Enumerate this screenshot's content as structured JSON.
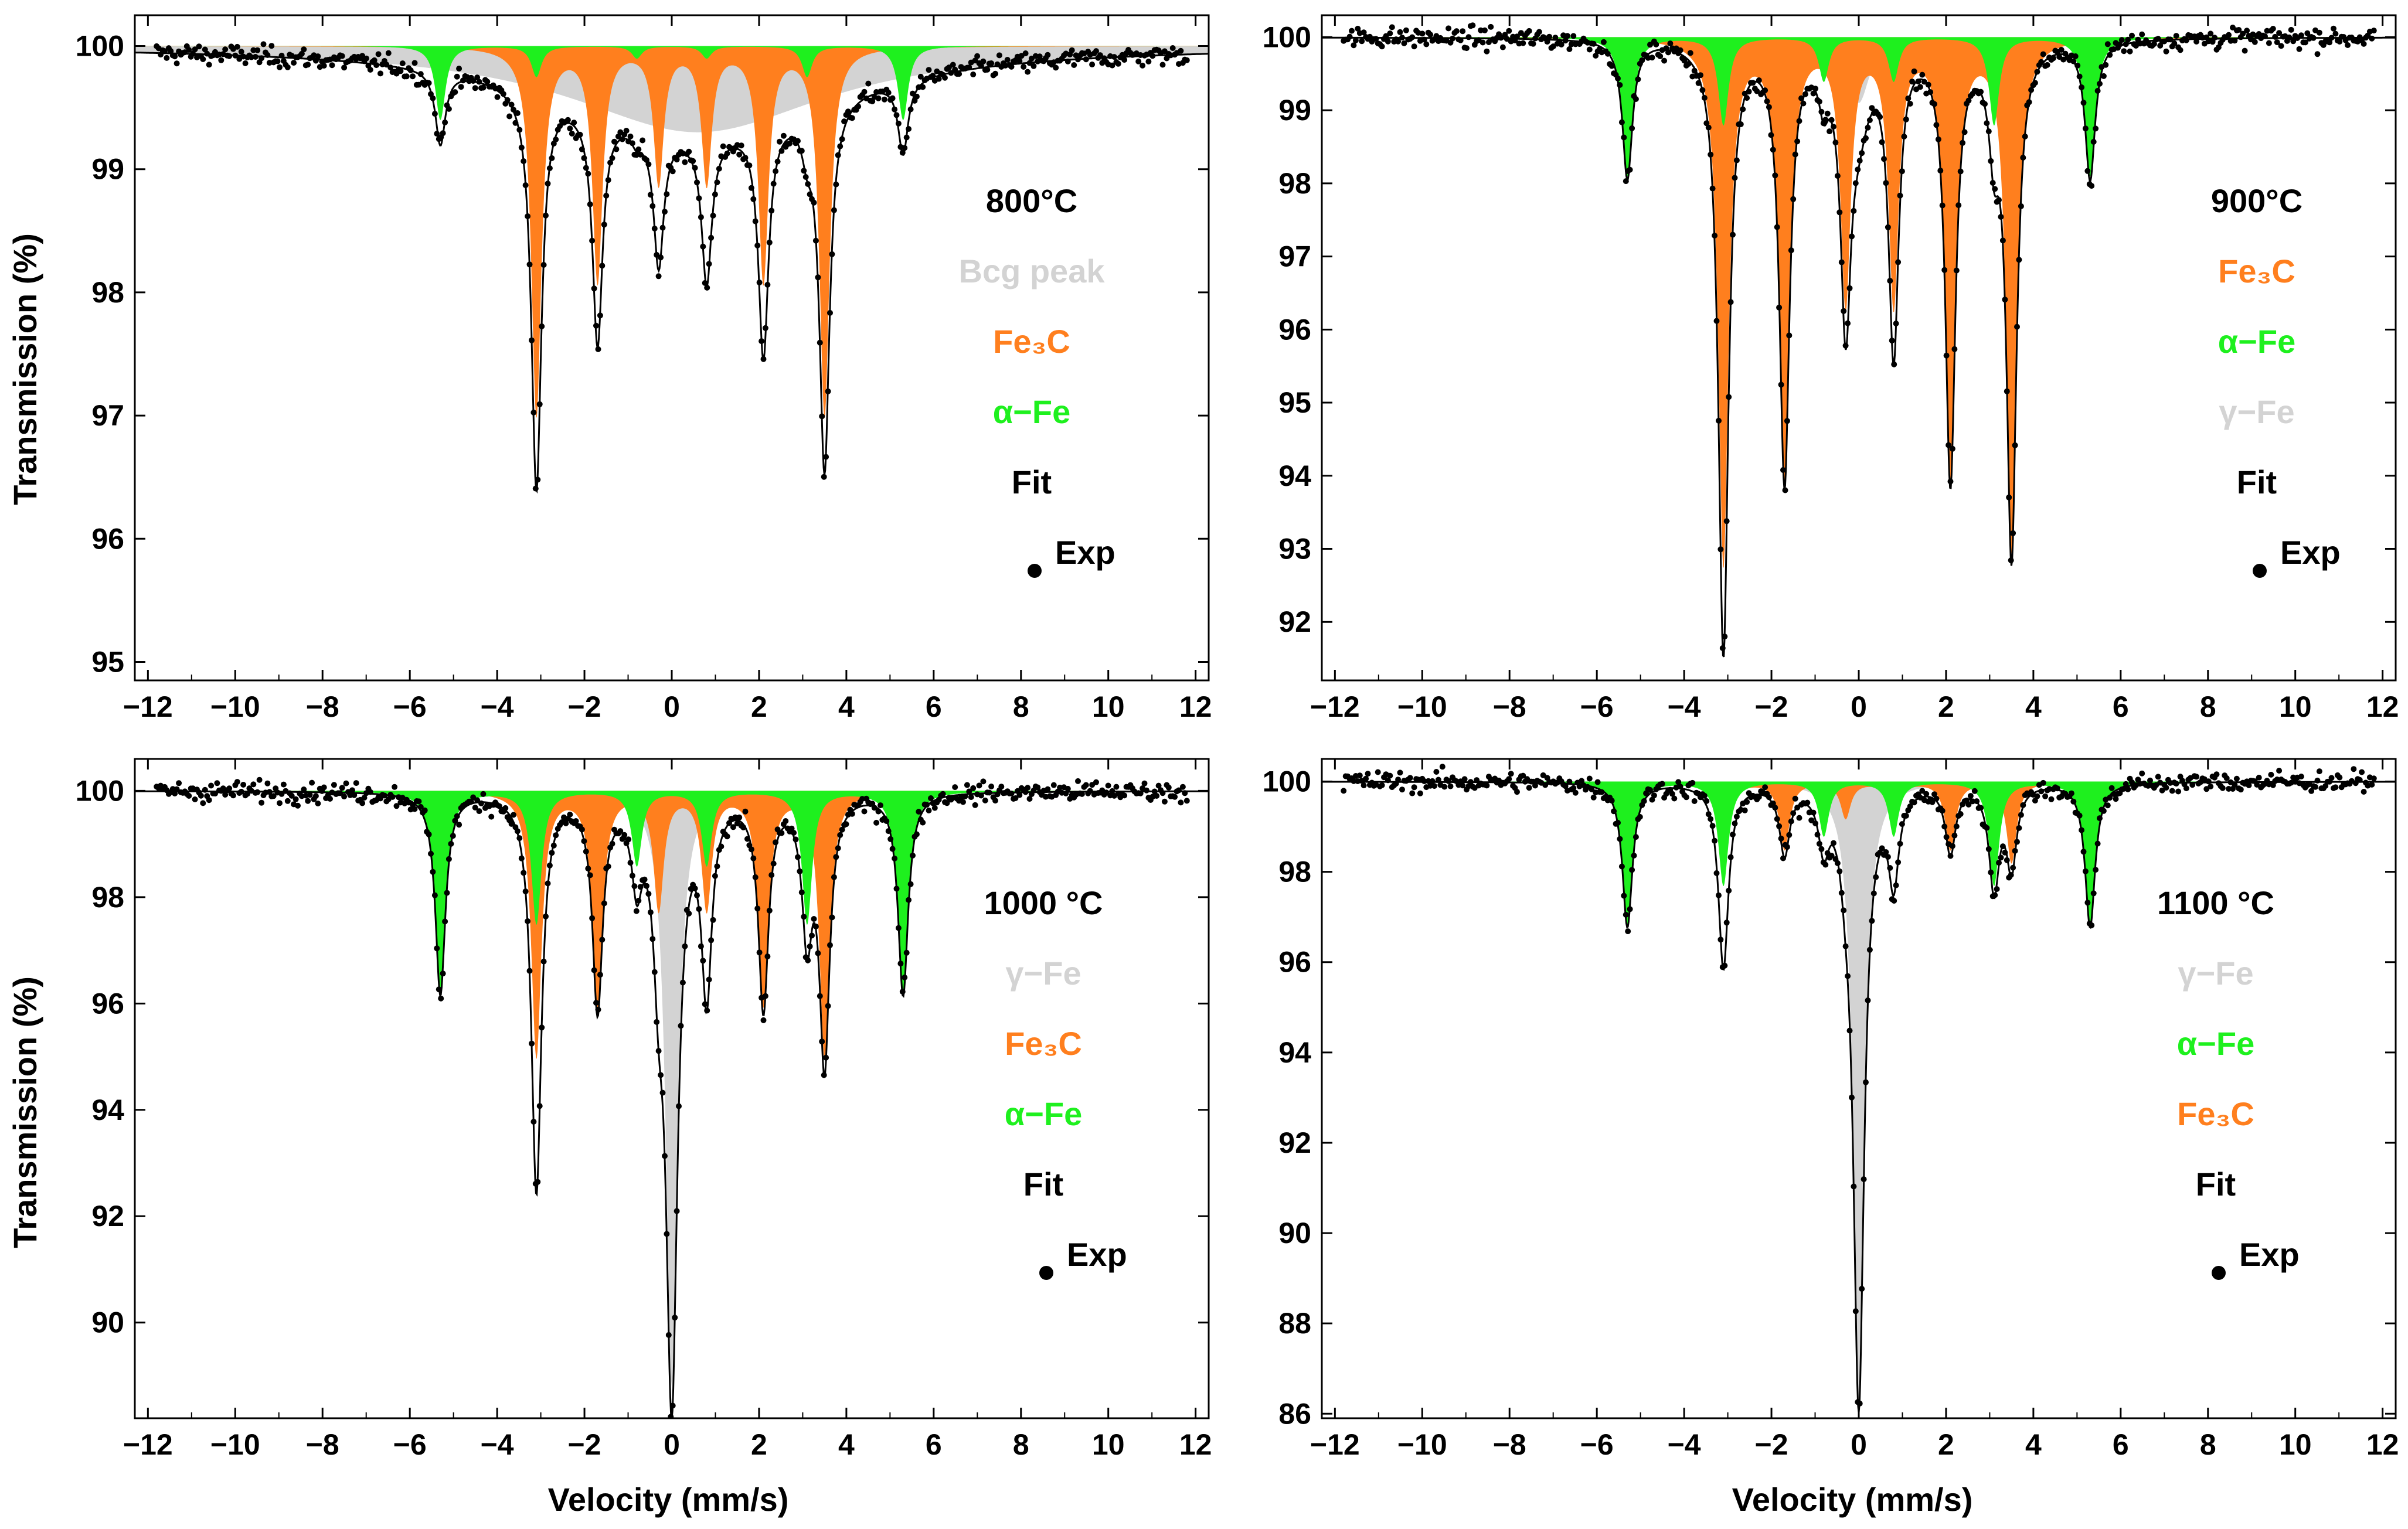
{
  "figure": {
    "x_label": "Velocity (mm/s)",
    "y_label": "Transmission (%)",
    "x_tick_labels": [
      "−12",
      "−10",
      "−8",
      "−6",
      "−4",
      "−2",
      "0",
      "2",
      "4",
      "6",
      "8",
      "10",
      "12"
    ]
  },
  "colors": {
    "fe3c": "#FF7F1E",
    "alpha_fe": "#1EF01E",
    "gray": "#D3D3D3",
    "fit": "#000000",
    "exp": "#000000"
  },
  "chart_data": [
    {
      "type": "area",
      "title": "800°C",
      "xlabel": "Velocity (mm/s)",
      "ylabel": "Transmission (%)",
      "xlim": [
        -12.3,
        12.3
      ],
      "ylim": [
        94.85,
        100.25
      ],
      "yticks": [
        95,
        96,
        97,
        98,
        99,
        100
      ],
      "legend": [
        {
          "label": "800°C",
          "color": "#000000",
          "kind": "title"
        },
        {
          "label": "Bcg peak",
          "color": "#D3D3D3",
          "kind": "text"
        },
        {
          "label": "Fe₃C",
          "color": "#FF7F1E",
          "kind": "text"
        },
        {
          "label": "α−Fe",
          "color": "#1EF01E",
          "kind": "text"
        },
        {
          "label": "Fit",
          "color": "#000000",
          "kind": "text"
        },
        {
          "label": "Exp",
          "color": "#000000",
          "kind": "marker"
        }
      ],
      "series": [
        {
          "name": "Bcg peak",
          "color": "#D3D3D3",
          "lines": [
            {
              "pos": 0.6,
              "depth": 0.7,
              "hwhm": 3.6
            }
          ]
        },
        {
          "name": "Fe₃C",
          "color": "#FF7F1E",
          "lines": [
            {
              "pos": -3.1,
              "depth": 3.0,
              "hwhm": 0.14
            },
            {
              "pos": -1.7,
              "depth": 1.9,
              "hwhm": 0.14
            },
            {
              "pos": -0.3,
              "depth": 1.1,
              "hwhm": 0.14
            },
            {
              "pos": 0.8,
              "depth": 1.1,
              "hwhm": 0.14
            },
            {
              "pos": 2.1,
              "depth": 1.9,
              "hwhm": 0.14
            },
            {
              "pos": 3.5,
              "depth": 3.0,
              "hwhm": 0.14
            }
          ]
        },
        {
          "name": "α−Fe",
          "color": "#1EF01E",
          "lines": [
            {
              "pos": -5.3,
              "depth": 0.6,
              "hwhm": 0.14
            },
            {
              "pos": -3.1,
              "depth": 0.25,
              "hwhm": 0.14
            },
            {
              "pos": -0.8,
              "depth": 0.1,
              "hwhm": 0.14
            },
            {
              "pos": 0.8,
              "depth": 0.1,
              "hwhm": 0.14
            },
            {
              "pos": 3.1,
              "depth": 0.25,
              "hwhm": 0.14
            },
            {
              "pos": 5.3,
              "depth": 0.6,
              "hwhm": 0.14
            }
          ]
        }
      ]
    },
    {
      "type": "area",
      "title": "900°C",
      "xlabel": "Velocity (mm/s)",
      "ylabel": "Transmission (%)",
      "xlim": [
        -12.3,
        12.3
      ],
      "ylim": [
        91.2,
        100.3
      ],
      "yticks": [
        92,
        93,
        94,
        95,
        96,
        97,
        98,
        99,
        100
      ],
      "legend": [
        {
          "label": "900°C",
          "color": "#000000",
          "kind": "title"
        },
        {
          "label": "Fe₃C",
          "color": "#FF7F1E",
          "kind": "text"
        },
        {
          "label": "α−Fe",
          "color": "#1EF01E",
          "kind": "text"
        },
        {
          "label": "γ−Fe",
          "color": "#D3D3D3",
          "kind": "text"
        },
        {
          "label": "Fit",
          "color": "#000000",
          "kind": "text"
        },
        {
          "label": "Exp",
          "color": "#000000",
          "kind": "marker"
        }
      ],
      "series": [
        {
          "name": "γ−Fe",
          "color": "#D3D3D3",
          "lines": [
            {
              "pos": 0.0,
              "depth": 0.9,
              "hwhm": 0.3
            }
          ]
        },
        {
          "name": "Fe₃C",
          "color": "#FF7F1E",
          "lines": [
            {
              "pos": -3.1,
              "depth": 7.2,
              "hwhm": 0.14
            },
            {
              "pos": -1.7,
              "depth": 6.0,
              "hwhm": 0.14
            },
            {
              "pos": -0.3,
              "depth": 3.6,
              "hwhm": 0.14
            },
            {
              "pos": 0.8,
              "depth": 3.6,
              "hwhm": 0.14
            },
            {
              "pos": 2.1,
              "depth": 6.0,
              "hwhm": 0.14
            },
            {
              "pos": 3.5,
              "depth": 7.0,
              "hwhm": 0.14
            }
          ]
        },
        {
          "name": "α−Fe",
          "color": "#1EF01E",
          "lines": [
            {
              "pos": -5.3,
              "depth": 1.9,
              "hwhm": 0.14
            },
            {
              "pos": -3.1,
              "depth": 1.2,
              "hwhm": 0.14
            },
            {
              "pos": -0.8,
              "depth": 0.6,
              "hwhm": 0.14
            },
            {
              "pos": 0.8,
              "depth": 0.6,
              "hwhm": 0.14
            },
            {
              "pos": 3.1,
              "depth": 1.2,
              "hwhm": 0.14
            },
            {
              "pos": 5.3,
              "depth": 1.9,
              "hwhm": 0.14
            }
          ]
        }
      ]
    },
    {
      "type": "area",
      "title": "1000 °C",
      "xlabel": "Velocity (mm/s)",
      "ylabel": "Transmission (%)",
      "xlim": [
        -12.3,
        12.3
      ],
      "ylim": [
        88.2,
        100.6
      ],
      "yticks": [
        90,
        92,
        94,
        96,
        98,
        100
      ],
      "legend": [
        {
          "label": "1000 °C",
          "color": "#000000",
          "kind": "title"
        },
        {
          "label": "γ−Fe",
          "color": "#D3D3D3",
          "kind": "text"
        },
        {
          "label": "Fe₃C",
          "color": "#FF7F1E",
          "kind": "text"
        },
        {
          "label": "α−Fe",
          "color": "#1EF01E",
          "kind": "text"
        },
        {
          "label": "Fit",
          "color": "#000000",
          "kind": "text"
        },
        {
          "label": "Exp",
          "color": "#000000",
          "kind": "marker"
        }
      ],
      "series": [
        {
          "name": "γ−Fe",
          "color": "#D3D3D3",
          "lines": [
            {
              "pos": 0.0,
              "depth": 11.2,
              "hwhm": 0.16
            }
          ]
        },
        {
          "name": "Fe₃C",
          "color": "#FF7F1E",
          "lines": [
            {
              "pos": -3.1,
              "depth": 5.0,
              "hwhm": 0.14
            },
            {
              "pos": -1.7,
              "depth": 4.0,
              "hwhm": 0.14
            },
            {
              "pos": -0.3,
              "depth": 2.2,
              "hwhm": 0.14
            },
            {
              "pos": 0.8,
              "depth": 2.2,
              "hwhm": 0.14
            },
            {
              "pos": 2.1,
              "depth": 4.0,
              "hwhm": 0.14
            },
            {
              "pos": 3.5,
              "depth": 5.0,
              "hwhm": 0.14
            }
          ]
        },
        {
          "name": "α−Fe",
          "color": "#1EF01E",
          "lines": [
            {
              "pos": -5.3,
              "depth": 3.8,
              "hwhm": 0.14
            },
            {
              "pos": -3.1,
              "depth": 2.5,
              "hwhm": 0.14
            },
            {
              "pos": -0.8,
              "depth": 1.4,
              "hwhm": 0.14
            },
            {
              "pos": 0.8,
              "depth": 1.4,
              "hwhm": 0.14
            },
            {
              "pos": 3.1,
              "depth": 2.5,
              "hwhm": 0.14
            },
            {
              "pos": 5.3,
              "depth": 3.8,
              "hwhm": 0.14
            }
          ]
        }
      ]
    },
    {
      "type": "area",
      "title": "1100 °C",
      "xlabel": "Velocity (mm/s)",
      "ylabel": "Transmission (%)",
      "xlim": [
        -12.3,
        12.3
      ],
      "ylim": [
        85.9,
        100.5
      ],
      "yticks": [
        86,
        88,
        90,
        92,
        94,
        96,
        98,
        100
      ],
      "legend": [
        {
          "label": "1100 °C",
          "color": "#000000",
          "kind": "title"
        },
        {
          "label": "γ−Fe",
          "color": "#D3D3D3",
          "kind": "text"
        },
        {
          "label": "α−Fe",
          "color": "#1EF01E",
          "kind": "text"
        },
        {
          "label": "Fe₃C",
          "color": "#FF7F1E",
          "kind": "text"
        },
        {
          "label": "Fit",
          "color": "#000000",
          "kind": "text"
        },
        {
          "label": "Exp",
          "color": "#000000",
          "kind": "marker"
        }
      ],
      "series": [
        {
          "name": "γ−Fe",
          "color": "#D3D3D3",
          "lines": [
            {
              "pos": 0.0,
              "depth": 13.7,
              "hwhm": 0.15
            }
          ]
        },
        {
          "name": "Fe₃C",
          "color": "#FF7F1E",
          "lines": [
            {
              "pos": -3.1,
              "depth": 1.8,
              "hwhm": 0.14
            },
            {
              "pos": -1.7,
              "depth": 1.5,
              "hwhm": 0.14
            },
            {
              "pos": -0.3,
              "depth": 0.8,
              "hwhm": 0.14
            },
            {
              "pos": 0.8,
              "depth": 0.8,
              "hwhm": 0.14
            },
            {
              "pos": 2.1,
              "depth": 1.5,
              "hwhm": 0.14
            },
            {
              "pos": 3.5,
              "depth": 1.8,
              "hwhm": 0.14
            }
          ]
        },
        {
          "name": "α−Fe",
          "color": "#1EF01E",
          "lines": [
            {
              "pos": -5.3,
              "depth": 3.2,
              "hwhm": 0.14
            },
            {
              "pos": -3.1,
              "depth": 2.3,
              "hwhm": 0.14
            },
            {
              "pos": -0.8,
              "depth": 1.2,
              "hwhm": 0.14
            },
            {
              "pos": 0.8,
              "depth": 1.2,
              "hwhm": 0.14
            },
            {
              "pos": 3.1,
              "depth": 2.3,
              "hwhm": 0.14
            },
            {
              "pos": 5.3,
              "depth": 3.2,
              "hwhm": 0.14
            }
          ]
        }
      ]
    }
  ]
}
